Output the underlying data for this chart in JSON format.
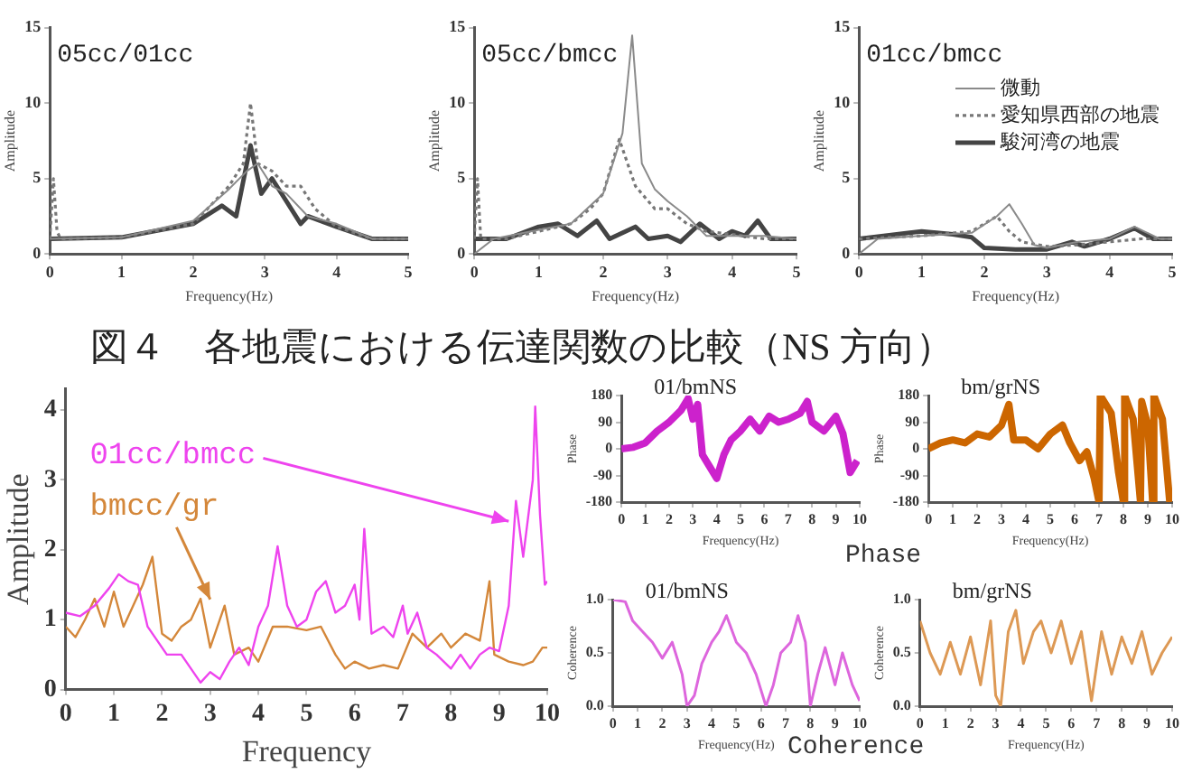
{
  "chart_data": [
    {
      "type": "line",
      "title": "05cc/01cc",
      "xlabel": "Frequency(Hz)",
      "ylabel": "Amplitude",
      "xlim": [
        0,
        5
      ],
      "xticks": [
        0,
        1,
        2,
        3,
        4,
        5
      ],
      "ylim": [
        0,
        15
      ],
      "yticks": [
        0,
        5,
        10,
        15
      ],
      "marker": "none",
      "series": [
        {
          "color": "#8a8a8a",
          "line_style": "solid",
          "x": [
            0,
            1,
            2,
            2.5,
            2.75,
            2.9,
            3.1,
            3.3,
            3.6,
            4,
            4.5,
            5
          ],
          "values": [
            1,
            1.1,
            2.2,
            4.3,
            5.5,
            6,
            4.5,
            4,
            2.5,
            2,
            1,
            1
          ]
        },
        {
          "color": "#777777",
          "line_style": "dotted",
          "x": [
            0,
            0.05,
            0.1,
            0.15,
            1,
            2,
            2.5,
            2.7,
            2.8,
            2.9,
            3.1,
            3.3,
            3.5,
            3.7,
            4,
            4.5,
            5
          ],
          "values": [
            1,
            5,
            1.5,
            1,
            1.1,
            2,
            4.5,
            6,
            10,
            6,
            5.5,
            4.5,
            4.5,
            3,
            1.8,
            1,
            1
          ]
        },
        {
          "color": "#444444",
          "line_style": "solid",
          "x": [
            0,
            1,
            2,
            2.4,
            2.6,
            2.8,
            2.95,
            3.1,
            3.3,
            3.5,
            3.6,
            4,
            4.5,
            5
          ],
          "values": [
            1,
            1.1,
            2,
            3.2,
            2.5,
            7.2,
            4,
            5,
            3.5,
            2,
            2.5,
            1.8,
            1,
            1
          ]
        }
      ]
    },
    {
      "type": "line",
      "title": "05cc/bmcc",
      "xlabel": "Frequency(Hz)",
      "ylabel": "Amplitude",
      "xlim": [
        0,
        5
      ],
      "xticks": [
        0,
        1,
        2,
        3,
        4,
        5
      ],
      "ylim": [
        0,
        15
      ],
      "yticks": [
        0,
        5,
        10,
        15
      ],
      "marker": "none",
      "series": [
        {
          "color": "#8a8a8a",
          "line_style": "solid",
          "x": [
            0,
            0.3,
            1,
            1.5,
            2,
            2.3,
            2.45,
            2.6,
            2.8,
            3,
            3.3,
            3.6,
            4,
            4.5,
            5
          ],
          "values": [
            0,
            1,
            1.6,
            2,
            4,
            8,
            14.5,
            6,
            4.3,
            3.5,
            2.5,
            1.2,
            1.2,
            1.2,
            1
          ]
        },
        {
          "color": "#777777",
          "line_style": "dotted",
          "x": [
            0,
            0.05,
            0.1,
            0.5,
            1,
            1.5,
            1.8,
            2,
            2.25,
            2.5,
            2.8,
            3,
            3.3,
            3.6,
            4,
            4.5,
            5
          ],
          "values": [
            1,
            5,
            1,
            1,
            1.5,
            2,
            3,
            4,
            7.6,
            4.5,
            3,
            3,
            2,
            1.5,
            1.3,
            1,
            1
          ]
        },
        {
          "color": "#444444",
          "line_style": "solid",
          "x": [
            0,
            0.5,
            1,
            1.3,
            1.6,
            1.9,
            2.1,
            2.5,
            2.7,
            3,
            3.2,
            3.5,
            3.8,
            4,
            4.2,
            4.4,
            4.6,
            5
          ],
          "values": [
            1,
            1,
            1.8,
            2,
            1.2,
            2.2,
            1,
            1.8,
            1,
            1.2,
            0.8,
            2,
            1,
            1.5,
            1.2,
            2.2,
            1,
            1
          ]
        }
      ]
    },
    {
      "type": "line",
      "title": "01cc/bmcc",
      "xlabel": "Frequency(Hz)",
      "ylabel": "Amplitude",
      "xlim": [
        0,
        5
      ],
      "xticks": [
        0,
        1,
        2,
        3,
        4,
        5
      ],
      "ylim": [
        0,
        15
      ],
      "yticks": [
        0,
        5,
        10,
        15
      ],
      "marker": "none",
      "legend": "top right",
      "series": [
        {
          "name": "微動",
          "color": "#8a8a8a",
          "line_style": "solid",
          "x": [
            0,
            0.3,
            1,
            1.8,
            2.2,
            2.4,
            2.6,
            2.8,
            3,
            3.5,
            4,
            4.4,
            4.8,
            5
          ],
          "values": [
            0,
            1,
            1.2,
            1.4,
            2.5,
            3.3,
            2,
            0.6,
            0.4,
            0.8,
            1,
            1.8,
            1,
            1
          ]
        },
        {
          "name": "愛知県西部の地震",
          "color": "#777777",
          "line_style": "dotted",
          "x": [
            0,
            1,
            1.8,
            2.2,
            2.4,
            2.6,
            3,
            3.5,
            4,
            4.5,
            5
          ],
          "values": [
            1,
            1.2,
            1.5,
            2.5,
            1.5,
            0.8,
            0.5,
            0.6,
            0.8,
            1,
            1
          ]
        },
        {
          "name": "駿河湾の地震",
          "color": "#444444",
          "line_style": "solid",
          "x": [
            0,
            1,
            1.5,
            1.8,
            2,
            2.5,
            3,
            3.4,
            3.6,
            4,
            4.4,
            4.7,
            5
          ],
          "values": [
            1,
            1.5,
            1.3,
            1.1,
            0.4,
            0.3,
            0.3,
            0.8,
            0.5,
            1,
            1.7,
            1,
            1
          ]
        }
      ]
    },
    {
      "type": "line",
      "title": "図４　各地震における伝達関数の比較（NS 方向）",
      "xlabel": "Frequency",
      "ylabel": "Amplitude",
      "xlim": [
        0,
        10
      ],
      "xticks": [
        0,
        1,
        2,
        3,
        4,
        5,
        6,
        7,
        8,
        9,
        10
      ],
      "ylim": [
        0,
        4.3
      ],
      "yticks": [
        0,
        1,
        2,
        3,
        4
      ],
      "marker": "none",
      "series": [
        {
          "name": "01cc/bmcc",
          "color": "#ee44ee",
          "x": [
            0,
            0.3,
            0.6,
            0.9,
            1.1,
            1.3,
            1.5,
            1.7,
            1.9,
            2.1,
            2.4,
            2.6,
            2.8,
            3,
            3.2,
            3.4,
            3.6,
            3.8,
            4,
            4.2,
            4.4,
            4.6,
            4.8,
            5,
            5.2,
            5.4,
            5.6,
            5.8,
            6,
            6.1,
            6.2,
            6.35,
            6.6,
            6.8,
            7,
            7.1,
            7.3,
            7.5,
            7.7,
            8,
            8.2,
            8.4,
            8.6,
            8.8,
            9,
            9.2,
            9.35,
            9.5,
            9.7,
            9.75,
            9.85,
            9.95,
            10
          ],
          "values": [
            1.1,
            1.05,
            1.2,
            1.45,
            1.65,
            1.55,
            1.5,
            0.9,
            0.7,
            0.5,
            0.5,
            0.3,
            0.1,
            0.25,
            0.15,
            0.4,
            0.6,
            0.35,
            0.9,
            1.2,
            2.05,
            1.2,
            0.9,
            1,
            1.4,
            1.55,
            1.1,
            1.2,
            1.5,
            1,
            2.3,
            0.8,
            0.9,
            0.75,
            1.2,
            0.8,
            1.1,
            0.6,
            0.5,
            0.3,
            0.5,
            0.3,
            0.5,
            0.6,
            0.55,
            1.2,
            2.7,
            1.9,
            3,
            4.05,
            2.5,
            1.5,
            1.55
          ]
        },
        {
          "name": "bmcc/gr",
          "color": "#d4873a",
          "x": [
            0,
            0.2,
            0.4,
            0.6,
            0.8,
            1,
            1.2,
            1.4,
            1.6,
            1.8,
            2,
            2.2,
            2.4,
            2.6,
            2.8,
            3,
            3.3,
            3.5,
            3.8,
            4,
            4.3,
            4.6,
            5,
            5.3,
            5.6,
            5.8,
            6,
            6.3,
            6.6,
            6.9,
            7.2,
            7.5,
            7.8,
            8,
            8.3,
            8.6,
            8.8,
            8.9,
            9.2,
            9.5,
            9.7,
            9.9,
            10
          ],
          "values": [
            0.9,
            0.75,
            1,
            1.3,
            0.9,
            1.4,
            0.9,
            1.2,
            1.5,
            1.9,
            0.8,
            0.7,
            0.9,
            1,
            1.3,
            0.6,
            1.2,
            0.5,
            0.6,
            0.4,
            0.9,
            0.9,
            0.85,
            0.9,
            0.5,
            0.3,
            0.4,
            0.3,
            0.35,
            0.3,
            0.8,
            0.6,
            0.8,
            0.6,
            0.8,
            0.7,
            1.55,
            0.5,
            0.4,
            0.35,
            0.4,
            0.6,
            0.6
          ]
        }
      ]
    },
    {
      "type": "line",
      "title": "01/bmNS",
      "xlabel": "Frequency(Hz)",
      "ylabel": "Phase",
      "xlim": [
        0,
        10
      ],
      "xticks": [
        0,
        1,
        2,
        3,
        4,
        5,
        6,
        7,
        8,
        9,
        10
      ],
      "ylim": [
        -180,
        180
      ],
      "yticks": [
        -180,
        -90,
        0,
        90,
        180
      ],
      "marker": "none",
      "annotations": [
        "Phase"
      ],
      "series": [
        {
          "color": "#cc22cc",
          "x": [
            0,
            0.5,
            1,
            1.5,
            2,
            2.5,
            2.8,
            3,
            3.2,
            3.4,
            3.7,
            4,
            4.3,
            4.6,
            5,
            5.4,
            5.8,
            6.2,
            6.6,
            7,
            7.5,
            7.8,
            8,
            8.5,
            9,
            9.3,
            9.6,
            9.9
          ],
          "values": [
            0,
            5,
            20,
            60,
            90,
            130,
            170,
            100,
            150,
            -20,
            -60,
            -100,
            -20,
            30,
            60,
            100,
            60,
            110,
            90,
            100,
            120,
            160,
            90,
            60,
            110,
            50,
            -80,
            -40
          ]
        }
      ]
    },
    {
      "type": "line",
      "title": "bm/grNS",
      "xlabel": "Frequency(Hz)",
      "ylabel": "Phase",
      "xlim": [
        0,
        10
      ],
      "xticks": [
        0,
        1,
        2,
        3,
        4,
        5,
        6,
        7,
        8,
        9,
        10
      ],
      "ylim": [
        -180,
        180
      ],
      "yticks": [
        -180,
        -90,
        0,
        90,
        180
      ],
      "marker": "none",
      "series": [
        {
          "color": "#cc6600",
          "x": [
            0,
            0.5,
            1,
            1.5,
            2,
            2.5,
            3,
            3.3,
            3.5,
            4,
            4.5,
            5,
            5.5,
            5.8,
            6.2,
            6.5,
            6.8,
            7,
            7.05,
            7.5,
            7.8,
            8,
            8.05,
            8.4,
            8.7,
            8.75,
            9,
            9.2,
            9.25,
            9.6,
            9.9
          ],
          "values": [
            0,
            20,
            30,
            20,
            50,
            40,
            80,
            150,
            30,
            30,
            0,
            50,
            80,
            20,
            -40,
            -10,
            -100,
            -180,
            180,
            120,
            -80,
            -180,
            180,
            100,
            -180,
            160,
            80,
            -180,
            180,
            100,
            -180
          ]
        }
      ]
    },
    {
      "type": "line",
      "title": "01/bmNS",
      "xlabel": "Frequency(Hz)",
      "ylabel": "Coherence",
      "xlim": [
        0,
        10
      ],
      "xticks": [
        0,
        1,
        2,
        3,
        4,
        5,
        6,
        7,
        8,
        9,
        10
      ],
      "ylim": [
        0,
        1
      ],
      "yticks": [
        {
          "value": 0,
          "label": "0.0"
        },
        {
          "value": 0.5,
          "label": "0.5"
        },
        {
          "value": 1,
          "label": "1.0"
        }
      ],
      "marker": "none",
      "annotations": [
        "Coherence"
      ],
      "series": [
        {
          "color": "#dd66dd",
          "x": [
            0,
            0.5,
            0.8,
            1.2,
            1.6,
            2,
            2.4,
            2.8,
            3,
            3.3,
            3.6,
            4,
            4.3,
            4.6,
            5,
            5.4,
            5.8,
            6.2,
            6.5,
            6.8,
            7.2,
            7.5,
            7.8,
            8,
            8.3,
            8.6,
            9,
            9.3,
            9.7,
            10
          ],
          "values": [
            1,
            0.98,
            0.8,
            0.7,
            0.6,
            0.45,
            0.6,
            0.3,
            0,
            0.1,
            0.4,
            0.6,
            0.7,
            0.85,
            0.6,
            0.5,
            0.3,
            0,
            0.2,
            0.5,
            0.6,
            0.85,
            0.6,
            0,
            0.3,
            0.55,
            0.2,
            0.5,
            0.2,
            0.05
          ]
        }
      ]
    },
    {
      "type": "line",
      "title": "bm/grNS",
      "xlabel": "Frequency(Hz)",
      "ylabel": "Coherence",
      "xlim": [
        0,
        10
      ],
      "xticks": [
        0,
        1,
        2,
        3,
        4,
        5,
        6,
        7,
        8,
        9,
        10
      ],
      "ylim": [
        0,
        1
      ],
      "yticks": [
        {
          "value": 0,
          "label": "0.0"
        },
        {
          "value": 0.5,
          "label": "0.5"
        },
        {
          "value": 1,
          "label": "1.0"
        }
      ],
      "marker": "none",
      "series": [
        {
          "color": "#dd9955",
          "x": [
            0,
            0.4,
            0.8,
            1.2,
            1.6,
            2,
            2.4,
            2.8,
            3,
            3.2,
            3.5,
            3.8,
            4.1,
            4.5,
            4.8,
            5.2,
            5.6,
            6,
            6.4,
            6.8,
            7.2,
            7.6,
            8,
            8.4,
            8.8,
            9.2,
            9.6,
            10
          ],
          "values": [
            0.8,
            0.5,
            0.3,
            0.6,
            0.3,
            0.65,
            0.2,
            0.8,
            0.1,
            0,
            0.7,
            0.9,
            0.4,
            0.7,
            0.8,
            0.5,
            0.8,
            0.4,
            0.7,
            0.05,
            0.7,
            0.3,
            0.65,
            0.4,
            0.7,
            0.3,
            0.5,
            0.65
          ]
        }
      ]
    }
  ]
}
